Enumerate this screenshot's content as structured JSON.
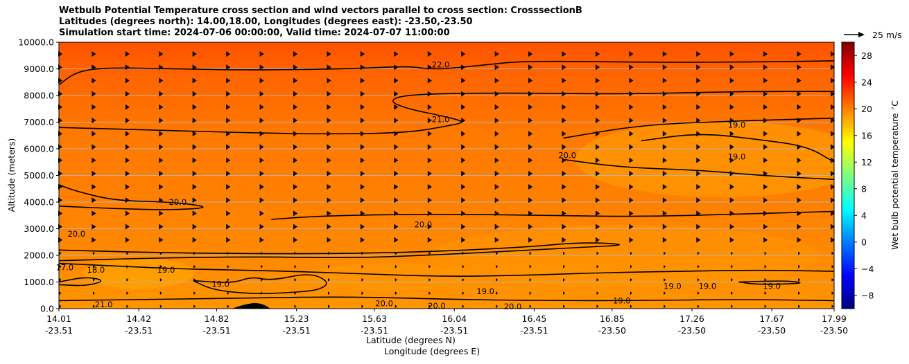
{
  "chart_data": {
    "type": "heatmap",
    "title_lines": [
      "Wetbulb Potential Temperature cross section and wind vectors parallel to cross section: CrosssectionB",
      "Latitudes (degrees north): 14.00,18.00, Longitudes (degrees east): -23.50,-23.50",
      "Simulation start time: 2024-07-06 00:00:00, Valid time: 2024-07-07 11:00:00"
    ],
    "xlabel_lat": "Latitude (degrees N)",
    "xlabel_lon": "Longitude (degrees E)",
    "ylabel": "Altitude (meters)",
    "xlim": [
      14.01,
      17.99
    ],
    "ylim": [
      0,
      10000
    ],
    "x_ticks": [
      {
        "lat": "14.01",
        "lon": "-23.51",
        "v": 14.01
      },
      {
        "lat": "14.42",
        "lon": "-23.51",
        "v": 14.42
      },
      {
        "lat": "14.82",
        "lon": "-23.51",
        "v": 14.82
      },
      {
        "lat": "15.23",
        "lon": "-23.51",
        "v": 15.23
      },
      {
        "lat": "15.63",
        "lon": "-23.51",
        "v": 15.63
      },
      {
        "lat": "16.04",
        "lon": "-23.51",
        "v": 16.04
      },
      {
        "lat": "16.45",
        "lon": "-23.51",
        "v": 16.45
      },
      {
        "lat": "16.85",
        "lon": "-23.50",
        "v": 16.85
      },
      {
        "lat": "17.26",
        "lon": "-23.50",
        "v": 17.26
      },
      {
        "lat": "17.67",
        "lon": "-23.50",
        "v": 17.67
      },
      {
        "lat": "17.99",
        "lon": "-23.50",
        "v": 17.99
      }
    ],
    "y_ticks": [
      {
        "label": "0.0",
        "v": 0
      },
      {
        "label": "1000.0",
        "v": 1000
      },
      {
        "label": "2000.0",
        "v": 2000
      },
      {
        "label": "3000.0",
        "v": 3000
      },
      {
        "label": "4000.0",
        "v": 4000
      },
      {
        "label": "5000.0",
        "v": 5000
      },
      {
        "label": "6000.0",
        "v": 6000
      },
      {
        "label": "7000.0",
        "v": 7000
      },
      {
        "label": "8000.0",
        "v": 8000
      },
      {
        "label": "9000.0",
        "v": 9000
      },
      {
        "label": "10000.0",
        "v": 10000
      }
    ],
    "colorbar": {
      "label": "Wet bulb potential temperature $^\\circ$C",
      "range": [
        -10,
        30
      ],
      "ticks": [
        {
          "label": "−8",
          "v": -8
        },
        {
          "label": "−4",
          "v": -4
        },
        {
          "label": "0",
          "v": 0
        },
        {
          "label": "4",
          "v": 4
        },
        {
          "label": "8",
          "v": 8
        },
        {
          "label": "12",
          "v": 12
        },
        {
          "label": "16",
          "v": 16
        },
        {
          "label": "20",
          "v": 20
        },
        {
          "label": "24",
          "v": 24
        },
        {
          "label": "28",
          "v": 28
        }
      ],
      "colors": [
        "#00007f",
        "#0000ff",
        "#007fff",
        "#00ffff",
        "#7fff7f",
        "#ffff00",
        "#ff7f00",
        "#ff0000",
        "#7f0000"
      ]
    },
    "quiver_key": {
      "label": "25 m/s",
      "speed": 25
    },
    "contours": [
      {
        "level": "22.0",
        "points": [
          [
            14.01,
            8400
          ],
          [
            14.1,
            8900
          ],
          [
            14.25,
            9050
          ],
          [
            14.6,
            9000
          ],
          [
            15.0,
            8950
          ],
          [
            15.5,
            9000
          ],
          [
            15.8,
            9100
          ],
          [
            15.9,
            9000
          ],
          [
            16.0,
            9000
          ],
          [
            16.2,
            9150
          ],
          [
            16.4,
            9300
          ],
          [
            17.0,
            9250
          ],
          [
            17.5,
            9250
          ],
          [
            17.99,
            9300
          ]
        ],
        "label_at": [
          15.97,
          9150
        ]
      },
      {
        "level": "21.0",
        "points": [
          [
            14.01,
            6800
          ],
          [
            14.5,
            6700
          ],
          [
            15.0,
            6600
          ],
          [
            15.4,
            6550
          ],
          [
            15.8,
            6600
          ],
          [
            16.0,
            6850
          ],
          [
            16.1,
            7000
          ],
          [
            16.0,
            7200
          ],
          [
            15.8,
            7500
          ],
          [
            15.7,
            7800
          ],
          [
            15.8,
            8050
          ],
          [
            16.3,
            8100
          ],
          [
            16.9,
            8050
          ],
          [
            17.5,
            8150
          ],
          [
            17.99,
            8150
          ]
        ],
        "label_at": [
          15.97,
          7100
        ]
      },
      {
        "level": "20.0",
        "points": [
          [
            14.01,
            3850
          ],
          [
            14.3,
            3750
          ],
          [
            14.6,
            3700
          ],
          [
            14.8,
            3800
          ],
          [
            14.6,
            4000
          ],
          [
            14.3,
            4050
          ],
          [
            14.1,
            4400
          ],
          [
            14.01,
            4650
          ]
        ],
        "label_at": [
          14.62,
          4000
        ]
      },
      {
        "level": "20.0",
        "points": [
          [
            15.1,
            3350
          ],
          [
            15.4,
            3500
          ],
          [
            16.0,
            3550
          ],
          [
            16.5,
            3500
          ],
          [
            17.0,
            3450
          ],
          [
            17.5,
            3550
          ],
          [
            17.99,
            3650
          ]
        ],
        "label_at": [
          15.88,
          3150
        ]
      },
      {
        "level": "20.0",
        "points": [
          [
            14.01,
            2200
          ],
          [
            14.5,
            2100
          ],
          [
            15.2,
            2050
          ],
          [
            15.8,
            2100
          ],
          [
            16.4,
            2300
          ],
          [
            16.7,
            2500
          ],
          [
            16.95,
            2400
          ],
          [
            16.7,
            2300
          ],
          [
            16.3,
            2150
          ],
          [
            15.9,
            2000
          ],
          [
            15.5,
            1900
          ],
          [
            15.0,
            1950
          ],
          [
            14.5,
            1900
          ],
          [
            14.01,
            1800
          ]
        ],
        "label_at": [
          14.1,
          2800
        ]
      },
      {
        "level": "20.0",
        "points": [
          [
            16.6,
            5600
          ],
          [
            16.9,
            5300
          ],
          [
            17.3,
            5200
          ],
          [
            17.6,
            5000
          ],
          [
            17.99,
            4850
          ]
        ],
        "label_at": [
          16.62,
          5750
        ]
      },
      {
        "level": "19.0",
        "points": [
          [
            17.0,
            6300
          ],
          [
            17.3,
            6600
          ],
          [
            17.6,
            6350
          ],
          [
            17.85,
            6100
          ],
          [
            17.99,
            5500
          ]
        ],
        "label_at": [
          17.49,
          5700
        ]
      },
      {
        "level": "19.0",
        "points": [
          [
            16.6,
            6400
          ],
          [
            17.0,
            6900
          ],
          [
            17.5,
            7050
          ],
          [
            17.99,
            7150
          ]
        ],
        "label_at": [
          17.49,
          6900
        ]
      },
      {
        "level": "19.0",
        "points": [
          [
            14.01,
            1700
          ],
          [
            14.3,
            1600
          ],
          [
            14.6,
            1500
          ],
          [
            14.9,
            1450
          ],
          [
            15.2,
            1400
          ],
          [
            15.6,
            1300
          ],
          [
            16.0,
            1200
          ],
          [
            16.4,
            1250
          ],
          [
            16.8,
            1350
          ],
          [
            17.2,
            1400
          ],
          [
            17.6,
            1450
          ],
          [
            17.99,
            1400
          ]
        ],
        "label_at": [
          14.56,
          1450
        ]
      },
      {
        "level": "19.0",
        "points": [
          [
            14.7,
            1050
          ],
          [
            14.9,
            950
          ],
          [
            15.0,
            1200
          ],
          [
            15.1,
            1050
          ],
          [
            15.3,
            1350
          ],
          [
            15.4,
            1000
          ],
          [
            15.35,
            700
          ],
          [
            15.2,
            600
          ],
          [
            15.0,
            550
          ],
          [
            14.8,
            700
          ],
          [
            14.7,
            1050
          ]
        ],
        "label_at": [
          14.84,
          920
        ]
      },
      {
        "level": "19.0",
        "points": [
          [
            14.01,
            300
          ],
          [
            14.5,
            350
          ],
          [
            15.0,
            400
          ],
          [
            15.5,
            450
          ],
          [
            16.0,
            350
          ],
          [
            16.5,
            300
          ],
          [
            17.0,
            300
          ],
          [
            17.5,
            350
          ],
          [
            17.99,
            300
          ]
        ],
        "label_at": [
          16.2,
          650
        ]
      },
      {
        "level": "18.0",
        "points": [
          [
            14.01,
            1000
          ],
          [
            14.15,
            1200
          ],
          [
            14.25,
            1050
          ],
          [
            14.15,
            850
          ],
          [
            14.01,
            900
          ]
        ],
        "label_at": [
          14.2,
          1450
        ]
      },
      {
        "level": "19.0",
        "points": [
          [
            17.5,
            1000
          ],
          [
            17.75,
            1050
          ],
          [
            17.85,
            950
          ],
          [
            17.6,
            900
          ],
          [
            17.5,
            1000
          ]
        ],
        "label_at": [
          17.34,
          850
        ]
      }
    ],
    "labels_only": [
      {
        "text": "20.0",
        "at": [
          15.68,
          200
        ]
      },
      {
        "text": "20.0",
        "at": [
          15.95,
          100
        ]
      },
      {
        "text": "20.0",
        "at": [
          16.34,
          80
        ]
      },
      {
        "text": "21.0",
        "at": [
          14.24,
          150
        ]
      },
      {
        "text": "19.0",
        "at": [
          16.9,
          300
        ]
      },
      {
        "text": "19.0",
        "at": [
          17.16,
          850
        ]
      },
      {
        "text": "19.0",
        "at": [
          17.67,
          850
        ]
      },
      {
        "text": "17.0",
        "at": [
          14.04,
          1550
        ]
      }
    ]
  }
}
